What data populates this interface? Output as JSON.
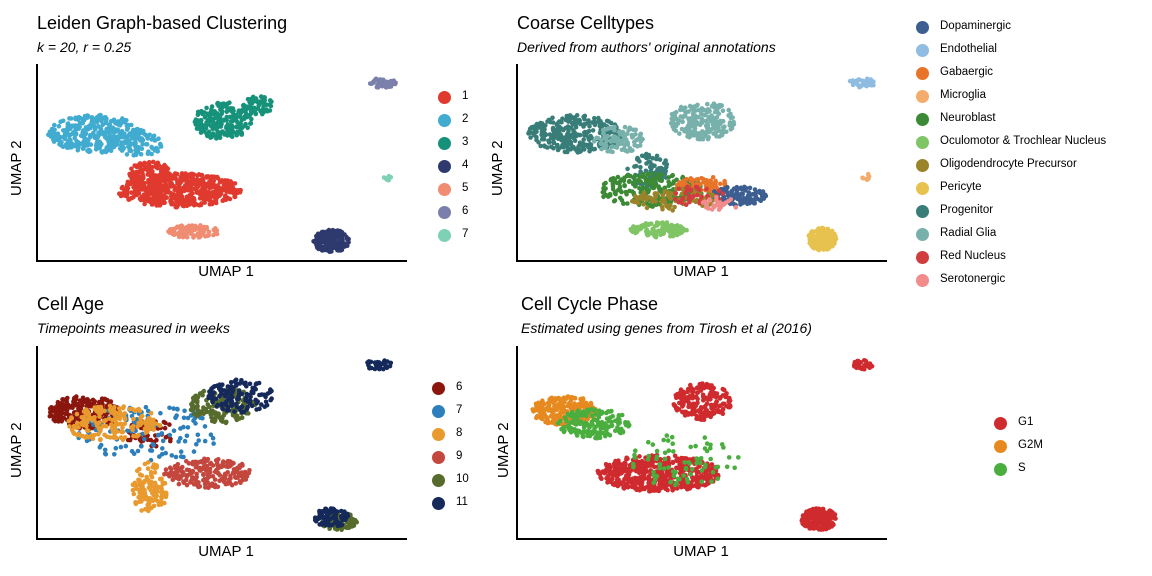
{
  "chart_data": [
    {
      "type": "scatter",
      "title": "Leiden Graph-based Clustering",
      "subtitle": "k = 20, r = 0.25",
      "xlabel": "UMAP 1",
      "ylabel": "UMAP 2",
      "grid": false,
      "legend_position": "right",
      "legend": [
        {
          "label": "1",
          "color": "#e03a2f"
        },
        {
          "label": "2",
          "color": "#41abd0"
        },
        {
          "label": "3",
          "color": "#17927a"
        },
        {
          "label": "4",
          "color": "#2e3a6e"
        },
        {
          "label": "5",
          "color": "#ef8c72"
        },
        {
          "label": "6",
          "color": "#7a80ab"
        },
        {
          "label": "7",
          "color": "#7fd1b6"
        }
      ],
      "series": [
        {
          "name": "1",
          "regions": [
            {
              "x": 0.38,
              "y": 0.35,
              "rx": 0.17,
              "ry": 0.09,
              "n": 520
            },
            {
              "x": 0.3,
              "y": 0.42,
              "rx": 0.06,
              "ry": 0.09,
              "n": 120
            }
          ]
        },
        {
          "name": "2",
          "regions": [
            {
              "x": 0.15,
              "y": 0.65,
              "rx": 0.13,
              "ry": 0.1,
              "n": 320
            },
            {
              "x": 0.27,
              "y": 0.6,
              "rx": 0.07,
              "ry": 0.07,
              "n": 80
            }
          ]
        },
        {
          "name": "3",
          "regions": [
            {
              "x": 0.5,
              "y": 0.72,
              "rx": 0.08,
              "ry": 0.1,
              "n": 200
            },
            {
              "x": 0.6,
              "y": 0.8,
              "rx": 0.05,
              "ry": 0.05,
              "n": 60
            }
          ]
        },
        {
          "name": "4",
          "regions": [
            {
              "x": 0.8,
              "y": 0.08,
              "rx": 0.05,
              "ry": 0.06,
              "n": 170
            }
          ]
        },
        {
          "name": "5",
          "regions": [
            {
              "x": 0.42,
              "y": 0.13,
              "rx": 0.07,
              "ry": 0.035,
              "n": 100
            }
          ]
        },
        {
          "name": "6",
          "regions": [
            {
              "x": 0.94,
              "y": 0.92,
              "rx": 0.04,
              "ry": 0.025,
              "n": 40
            }
          ]
        },
        {
          "name": "7",
          "regions": [
            {
              "x": 0.955,
              "y": 0.42,
              "rx": 0.01,
              "ry": 0.02,
              "n": 8
            }
          ]
        }
      ]
    },
    {
      "type": "scatter",
      "title": "Coarse Celltypes",
      "subtitle": "Derived from authors' original annotations",
      "xlabel": "UMAP 1",
      "ylabel": "UMAP 2",
      "grid": false,
      "legend_position": "right",
      "legend": [
        {
          "label": "Dopaminergic",
          "color": "#3c5e91"
        },
        {
          "label": "Endothelial",
          "color": "#8fbce0"
        },
        {
          "label": "Gabaergic",
          "color": "#e8742a"
        },
        {
          "label": "Microglia",
          "color": "#f4ac6c"
        },
        {
          "label": "Neuroblast",
          "color": "#3d8a36"
        },
        {
          "label": "Oculomotor & Trochlear Nucleus",
          "color": "#7fc565"
        },
        {
          "label": "Oligodendrocyte Precursor",
          "color": "#9b8329"
        },
        {
          "label": "Pericyte",
          "color": "#e7c24e"
        },
        {
          "label": "Progenitor",
          "color": "#387d78"
        },
        {
          "label": "Radial Glia",
          "color": "#78b1ab"
        },
        {
          "label": "Red Nucleus",
          "color": "#d13d3f"
        },
        {
          "label": "Serotonergic",
          "color": "#f28b8c"
        }
      ],
      "series": [
        {
          "name": "Progenitor",
          "regions": [
            {
              "x": 0.15,
              "y": 0.65,
              "rx": 0.13,
              "ry": 0.1,
              "n": 300
            },
            {
              "x": 0.35,
              "y": 0.45,
              "rx": 0.06,
              "ry": 0.1,
              "n": 80
            }
          ]
        },
        {
          "name": "Radial Glia",
          "regions": [
            {
              "x": 0.5,
              "y": 0.72,
              "rx": 0.09,
              "ry": 0.1,
              "n": 220
            },
            {
              "x": 0.27,
              "y": 0.62,
              "rx": 0.07,
              "ry": 0.07,
              "n": 90
            }
          ]
        },
        {
          "name": "Neuroblast",
          "regions": [
            {
              "x": 0.36,
              "y": 0.35,
              "rx": 0.15,
              "ry": 0.09,
              "n": 230
            }
          ]
        },
        {
          "name": "Gabaergic",
          "regions": [
            {
              "x": 0.5,
              "y": 0.38,
              "rx": 0.07,
              "ry": 0.05,
              "n": 70
            }
          ]
        },
        {
          "name": "Dopaminergic",
          "regions": [
            {
              "x": 0.6,
              "y": 0.32,
              "rx": 0.08,
              "ry": 0.05,
              "n": 120
            }
          ]
        },
        {
          "name": "Oligodendrocyte Precursor",
          "regions": [
            {
              "x": 0.42,
              "y": 0.3,
              "rx": 0.12,
              "ry": 0.06,
              "n": 80
            }
          ]
        },
        {
          "name": "Red Nucleus",
          "regions": [
            {
              "x": 0.48,
              "y": 0.32,
              "rx": 0.08,
              "ry": 0.05,
              "n": 40
            }
          ]
        },
        {
          "name": "Serotonergic",
          "regions": [
            {
              "x": 0.55,
              "y": 0.28,
              "rx": 0.05,
              "ry": 0.04,
              "n": 25
            }
          ]
        },
        {
          "name": "Oculomotor & Trochlear Nucleus",
          "regions": [
            {
              "x": 0.38,
              "y": 0.14,
              "rx": 0.08,
              "ry": 0.04,
              "n": 110
            }
          ]
        },
        {
          "name": "Pericyte",
          "regions": [
            {
              "x": 0.83,
              "y": 0.09,
              "rx": 0.04,
              "ry": 0.06,
              "n": 170
            }
          ]
        },
        {
          "name": "Endothelial",
          "regions": [
            {
              "x": 0.94,
              "y": 0.92,
              "rx": 0.04,
              "ry": 0.025,
              "n": 40
            }
          ]
        },
        {
          "name": "Microglia",
          "regions": [
            {
              "x": 0.95,
              "y": 0.42,
              "rx": 0.01,
              "ry": 0.02,
              "n": 8
            }
          ]
        }
      ]
    },
    {
      "type": "scatter",
      "title": "Cell Age",
      "subtitle": "Timepoints measured in weeks",
      "xlabel": "UMAP 1",
      "ylabel": "UMAP 2",
      "grid": false,
      "legend_position": "right",
      "legend": [
        {
          "label": "6",
          "color": "#8a160e"
        },
        {
          "label": "7",
          "color": "#2c7fbb"
        },
        {
          "label": "8",
          "color": "#e99a2e"
        },
        {
          "label": "9",
          "color": "#c4473e"
        },
        {
          "label": "10",
          "color": "#566b2c"
        },
        {
          "label": "11",
          "color": "#15295a"
        }
      ],
      "series": [
        {
          "name": "6",
          "regions": [
            {
              "x": 0.12,
              "y": 0.66,
              "rx": 0.1,
              "ry": 0.09,
              "n": 260
            },
            {
              "x": 0.3,
              "y": 0.55,
              "rx": 0.07,
              "ry": 0.08,
              "n": 60
            }
          ]
        },
        {
          "name": "7",
          "regions": [
            {
              "x": 0.3,
              "y": 0.55,
              "rx": 0.2,
              "ry": 0.15,
              "n": 110
            }
          ]
        },
        {
          "name": "8",
          "regions": [
            {
              "x": 0.2,
              "y": 0.6,
              "rx": 0.13,
              "ry": 0.1,
              "n": 180
            },
            {
              "x": 0.3,
              "y": 0.25,
              "rx": 0.05,
              "ry": 0.14,
              "n": 120
            }
          ]
        },
        {
          "name": "9",
          "regions": [
            {
              "x": 0.46,
              "y": 0.33,
              "rx": 0.12,
              "ry": 0.08,
              "n": 200
            }
          ]
        },
        {
          "name": "10",
          "regions": [
            {
              "x": 0.5,
              "y": 0.7,
              "rx": 0.09,
              "ry": 0.1,
              "n": 160
            },
            {
              "x": 0.82,
              "y": 0.07,
              "rx": 0.05,
              "ry": 0.05,
              "n": 90
            }
          ]
        },
        {
          "name": "11",
          "regions": [
            {
              "x": 0.55,
              "y": 0.75,
              "rx": 0.09,
              "ry": 0.09,
              "n": 130
            },
            {
              "x": 0.8,
              "y": 0.09,
              "rx": 0.05,
              "ry": 0.05,
              "n": 80
            },
            {
              "x": 0.93,
              "y": 0.92,
              "rx": 0.04,
              "ry": 0.025,
              "n": 35
            }
          ]
        }
      ]
    },
    {
      "type": "scatter",
      "title": "Cell Cycle Phase",
      "subtitle": "Estimated using genes from Tirosh et al (2016)",
      "xlabel": "UMAP 1",
      "ylabel": "UMAP 2",
      "grid": false,
      "legend_position": "right",
      "legend": [
        {
          "label": "G1",
          "color": "#cf2b2e"
        },
        {
          "label": "G2M",
          "color": "#e68a20"
        },
        {
          "label": "S",
          "color": "#4aae3f"
        }
      ],
      "series": [
        {
          "name": "G1",
          "regions": [
            {
              "x": 0.38,
              "y": 0.33,
              "rx": 0.17,
              "ry": 0.1,
              "n": 520
            },
            {
              "x": 0.5,
              "y": 0.72,
              "rx": 0.08,
              "ry": 0.1,
              "n": 200
            },
            {
              "x": 0.82,
              "y": 0.08,
              "rx": 0.05,
              "ry": 0.06,
              "n": 170
            },
            {
              "x": 0.94,
              "y": 0.92,
              "rx": 0.03,
              "ry": 0.025,
              "n": 40
            }
          ]
        },
        {
          "name": "G2M",
          "regions": [
            {
              "x": 0.12,
              "y": 0.67,
              "rx": 0.09,
              "ry": 0.08,
              "n": 220
            }
          ]
        },
        {
          "name": "S",
          "regions": [
            {
              "x": 0.2,
              "y": 0.6,
              "rx": 0.1,
              "ry": 0.08,
              "n": 170
            },
            {
              "x": 0.45,
              "y": 0.4,
              "rx": 0.15,
              "ry": 0.15,
              "n": 80
            }
          ]
        }
      ]
    }
  ]
}
